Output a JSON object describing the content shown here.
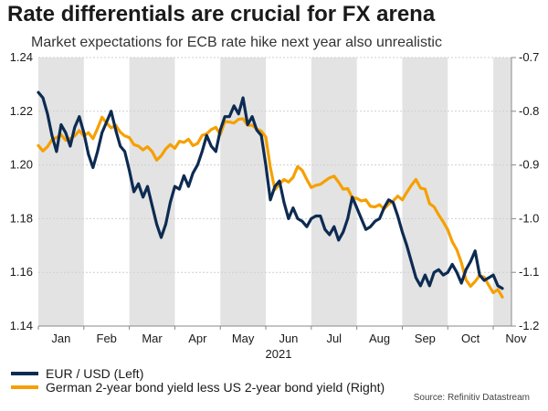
{
  "chart_data": {
    "type": "line",
    "title": "Rate differentials are crucial for FX arena",
    "subtitle": "Market expectations for ECB rate hike next year also unrealistic",
    "year_label": "2021",
    "months": [
      "Jan",
      "Feb",
      "Mar",
      "Apr",
      "May",
      "Jun",
      "Jul",
      "Aug",
      "Sep",
      "Oct",
      "Nov"
    ],
    "x_range": [
      0,
      10.4
    ],
    "y_left": {
      "ticks": [
        "1.24",
        "1.22",
        "1.20",
        "1.18",
        "1.16",
        "1.14"
      ],
      "range": [
        1.14,
        1.24
      ]
    },
    "y_right": {
      "ticks": [
        "-0.7",
        "-0.8",
        "-0.9",
        "-1.0",
        "-1.1",
        "-1.2"
      ],
      "range": [
        -1.2,
        -0.7
      ]
    },
    "series": [
      {
        "name": "EUR / USD (Left)",
        "axis": "left",
        "color": "#0d2b52",
        "x": [
          0,
          0.1,
          0.2,
          0.3,
          0.4,
          0.5,
          0.6,
          0.7,
          0.8,
          0.9,
          1,
          1.1,
          1.2,
          1.3,
          1.4,
          1.5,
          1.6,
          1.7,
          1.8,
          1.9,
          2,
          2.1,
          2.2,
          2.3,
          2.4,
          2.5,
          2.6,
          2.7,
          2.8,
          2.9,
          3,
          3.1,
          3.2,
          3.3,
          3.4,
          3.5,
          3.6,
          3.7,
          3.8,
          3.9,
          4,
          4.1,
          4.2,
          4.3,
          4.4,
          4.5,
          4.6,
          4.7,
          4.8,
          4.9,
          5,
          5.1,
          5.2,
          5.3,
          5.4,
          5.5,
          5.6,
          5.7,
          5.8,
          5.9,
          6,
          6.1,
          6.2,
          6.3,
          6.4,
          6.5,
          6.6,
          6.7,
          6.8,
          6.9,
          7,
          7.1,
          7.2,
          7.3,
          7.4,
          7.5,
          7.6,
          7.7,
          7.8,
          7.9,
          8,
          8.1,
          8.2,
          8.3,
          8.4,
          8.5,
          8.6,
          8.7,
          8.8,
          8.9,
          9,
          9.1,
          9.2,
          9.3,
          9.4,
          9.5,
          9.6,
          9.7,
          9.8,
          9.9,
          10,
          10.1,
          10.2
        ],
        "values": [
          1.227,
          1.225,
          1.219,
          1.211,
          1.205,
          1.215,
          1.212,
          1.207,
          1.214,
          1.218,
          1.212,
          1.204,
          1.199,
          1.205,
          1.212,
          1.216,
          1.22,
          1.213,
          1.207,
          1.205,
          1.198,
          1.19,
          1.193,
          1.188,
          1.192,
          1.185,
          1.178,
          1.173,
          1.178,
          1.186,
          1.192,
          1.191,
          1.196,
          1.192,
          1.197,
          1.2,
          1.205,
          1.211,
          1.207,
          1.205,
          1.213,
          1.218,
          1.218,
          1.222,
          1.219,
          1.225,
          1.215,
          1.218,
          1.213,
          1.211,
          1.2,
          1.187,
          1.192,
          1.194,
          1.186,
          1.18,
          1.184,
          1.18,
          1.179,
          1.177,
          1.18,
          1.181,
          1.181,
          1.176,
          1.174,
          1.177,
          1.172,
          1.175,
          1.18,
          1.188,
          1.184,
          1.18,
          1.176,
          1.177,
          1.179,
          1.18,
          1.184,
          1.187,
          1.186,
          1.181,
          1.175,
          1.17,
          1.164,
          1.158,
          1.155,
          1.159,
          1.155,
          1.16,
          1.161,
          1.159,
          1.16,
          1.163,
          1.16,
          1.156,
          1.161,
          1.164,
          1.168,
          1.159,
          1.157,
          1.158,
          1.159,
          1.155,
          1.154
        ]
      },
      {
        "name": "German 2-year bond yield less US 2-year bond yield (Right)",
        "axis": "right",
        "color": "#f5a000",
        "x": [
          0,
          0.1,
          0.2,
          0.3,
          0.4,
          0.5,
          0.6,
          0.7,
          0.8,
          0.9,
          1,
          1.1,
          1.2,
          1.3,
          1.4,
          1.5,
          1.6,
          1.7,
          1.8,
          1.9,
          2,
          2.1,
          2.2,
          2.3,
          2.4,
          2.5,
          2.6,
          2.7,
          2.8,
          2.9,
          3,
          3.1,
          3.2,
          3.3,
          3.4,
          3.5,
          3.6,
          3.7,
          3.8,
          3.9,
          4,
          4.1,
          4.2,
          4.3,
          4.4,
          4.5,
          4.6,
          4.7,
          4.8,
          4.9,
          5,
          5.1,
          5.2,
          5.3,
          5.4,
          5.5,
          5.6,
          5.7,
          5.8,
          5.9,
          6,
          6.1,
          6.2,
          6.3,
          6.4,
          6.5,
          6.6,
          6.7,
          6.8,
          6.9,
          7,
          7.1,
          7.2,
          7.3,
          7.4,
          7.5,
          7.6,
          7.7,
          7.8,
          7.9,
          8,
          8.1,
          8.2,
          8.3,
          8.4,
          8.5,
          8.6,
          8.7,
          8.8,
          8.9,
          9,
          9.1,
          9.2,
          9.3,
          9.4,
          9.5,
          9.6,
          9.7,
          9.8,
          9.9,
          10,
          10.1,
          10.2
        ],
        "values": [
          -0.864,
          -0.874,
          -0.866,
          -0.853,
          -0.849,
          -0.844,
          -0.854,
          -0.851,
          -0.846,
          -0.836,
          -0.846,
          -0.84,
          -0.851,
          -0.832,
          -0.811,
          -0.822,
          -0.831,
          -0.826,
          -0.839,
          -0.846,
          -0.849,
          -0.862,
          -0.865,
          -0.872,
          -0.866,
          -0.875,
          -0.891,
          -0.883,
          -0.87,
          -0.862,
          -0.869,
          -0.856,
          -0.858,
          -0.852,
          -0.864,
          -0.86,
          -0.845,
          -0.842,
          -0.834,
          -0.83,
          -0.843,
          -0.819,
          -0.82,
          -0.822,
          -0.815,
          -0.814,
          -0.826,
          -0.826,
          -0.833,
          -0.837,
          -0.848,
          -0.905,
          -0.946,
          -0.936,
          -0.927,
          -0.932,
          -0.923,
          -0.903,
          -0.91,
          -0.927,
          -0.942,
          -0.938,
          -0.936,
          -0.93,
          -0.924,
          -0.921,
          -0.932,
          -0.945,
          -0.944,
          -0.961,
          -0.962,
          -0.967,
          -0.965,
          -0.977,
          -0.978,
          -0.974,
          -0.982,
          -0.973,
          -0.967,
          -0.958,
          -0.965,
          -0.951,
          -0.938,
          -0.927,
          -0.943,
          -0.945,
          -0.972,
          -0.978,
          -0.993,
          -1.006,
          -1.021,
          -1.043,
          -1.058,
          -1.082,
          -1.114,
          -1.126,
          -1.117,
          -1.106,
          -1.109,
          -1.124,
          -1.138,
          -1.132,
          -1.146
        ]
      }
    ],
    "source": "Source: Refinitiv Datastream"
  }
}
